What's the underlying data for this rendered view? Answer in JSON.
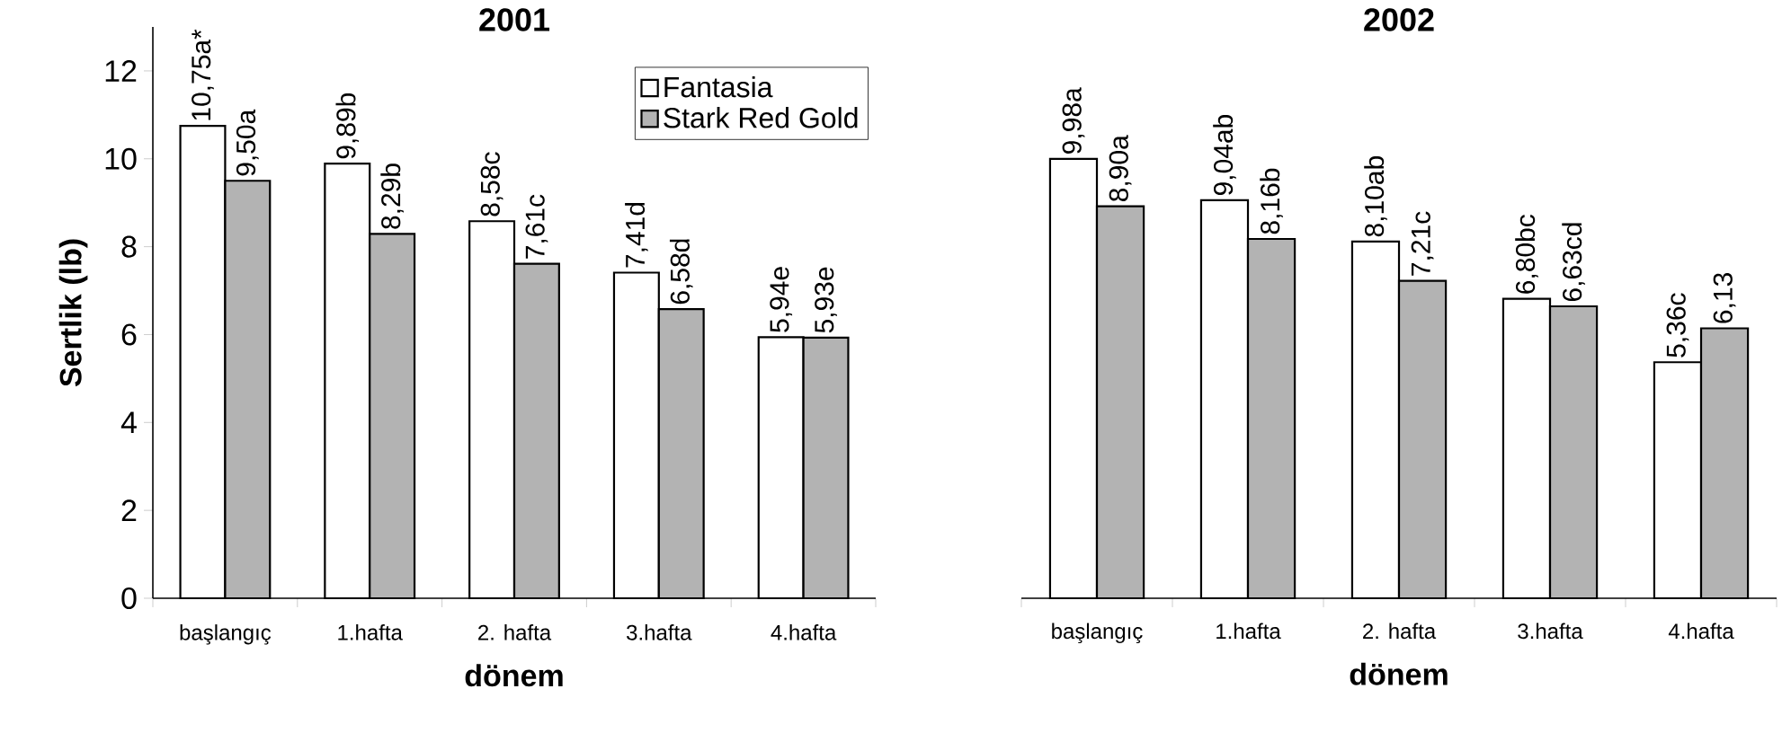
{
  "chart_data": [
    {
      "type": "bar",
      "title": "2001",
      "xlabel": "dönem",
      "ylabel": "Sertlik (lb)",
      "categories": [
        "başlangıç",
        "1.hafta",
        "2. hafta",
        "3.hafta",
        "4.hafta"
      ],
      "ylim": [
        0,
        13
      ],
      "yticks": [
        0,
        2,
        4,
        6,
        8,
        10,
        12
      ],
      "legend": "top right",
      "series": [
        {
          "name": "Fantasia",
          "color": "#ffffff",
          "values": [
            10.75,
            9.89,
            8.58,
            7.41,
            5.94
          ],
          "value_labels": [
            "10,75a*",
            "9,89b",
            "8,58c",
            "7,41d",
            "5,94e"
          ]
        },
        {
          "name": "Stark Red Gold",
          "color": "#b3b3b3",
          "values": [
            9.5,
            8.29,
            7.61,
            6.58,
            5.93
          ],
          "value_labels": [
            "9,50a",
            "8,29b",
            "7,61c",
            "6,58d",
            "5,93e"
          ]
        }
      ]
    },
    {
      "type": "bar",
      "title": "2002",
      "xlabel": "dönem",
      "categories": [
        "başlangıç",
        "1.hafta",
        "2. hafta",
        "3.hafta",
        "4.hafta"
      ],
      "tick_labels": "x",
      "series": [
        {
          "color": "#ffffff",
          "values": [
            9.98,
            9.04,
            8.1,
            6.8,
            5.36
          ],
          "value_labels": [
            "9,98a",
            "9,04ab",
            "8,10ab",
            "6,80bc",
            "5,36c"
          ]
        },
        {
          "color": "#b3b3b3",
          "values": [
            8.9,
            8.16,
            7.21,
            6.63,
            6.13
          ],
          "value_labels": [
            "8,90a",
            "8,16b",
            "7,21c",
            "6,63cd",
            "6,13"
          ]
        }
      ]
    }
  ]
}
